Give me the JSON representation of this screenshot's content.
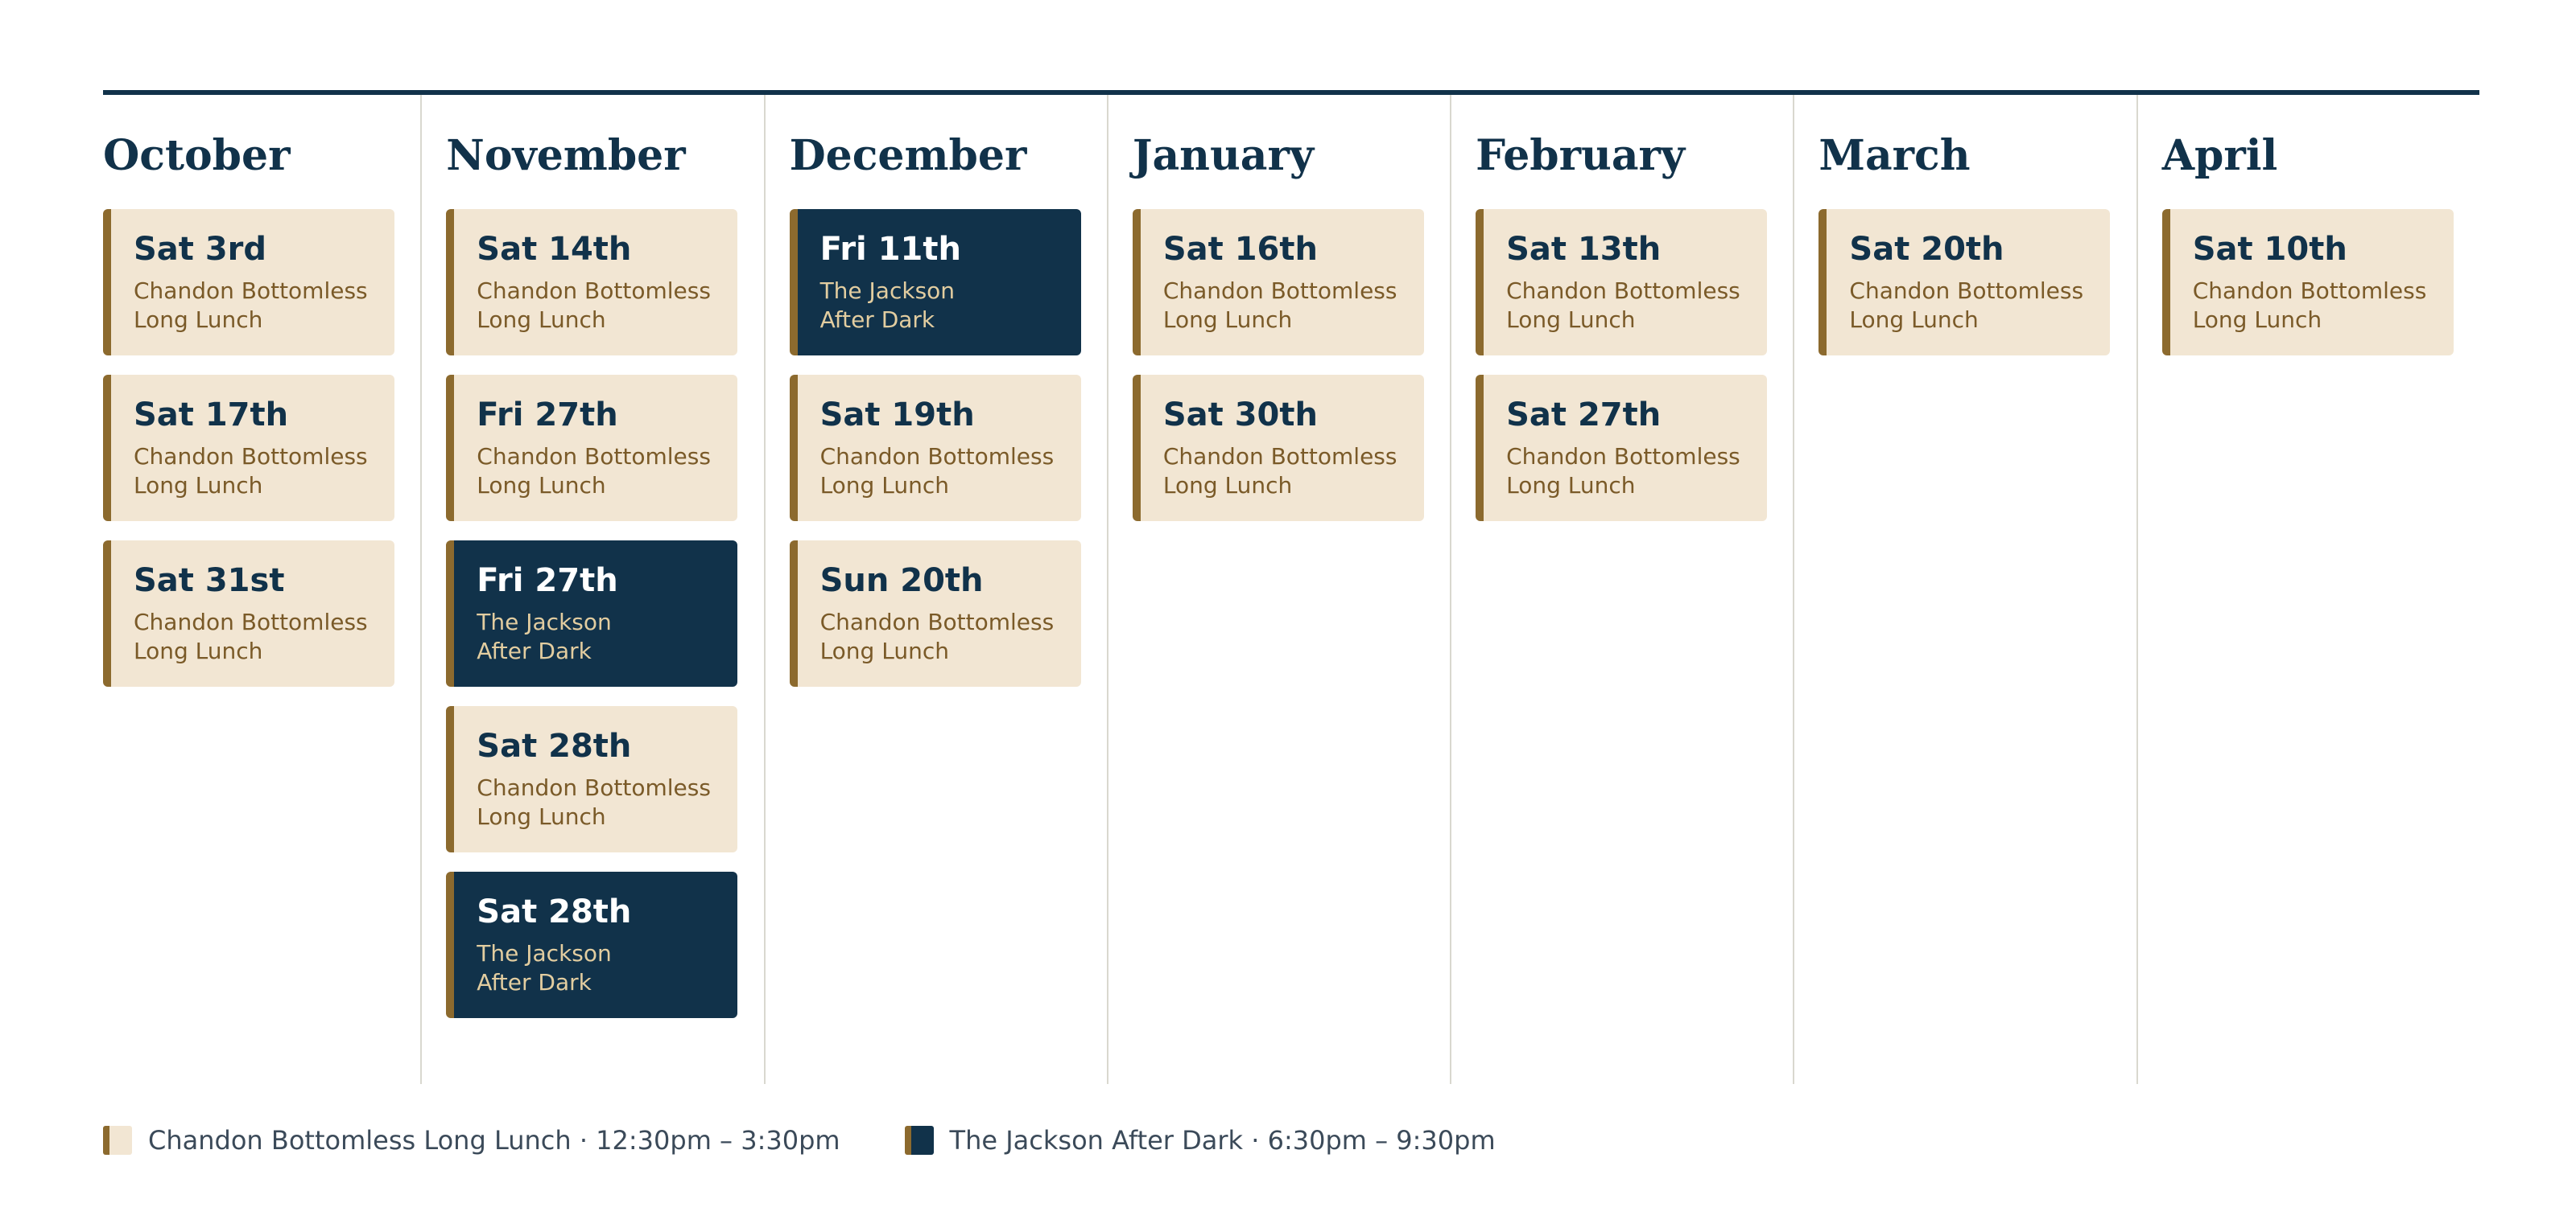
{
  "months": [
    {
      "name": "October",
      "events": [
        {
          "date": "Sat 3rd",
          "name": "Chandon Bottomless\nLong Lunch",
          "type": "lunch"
        },
        {
          "date": "Sat 17th",
          "name": "Chandon Bottomless\nLong Lunch",
          "type": "lunch"
        },
        {
          "date": "Sat 31st",
          "name": "Chandon Bottomless\nLong Lunch",
          "type": "lunch"
        }
      ]
    },
    {
      "name": "November",
      "events": [
        {
          "date": "Sat 14th",
          "name": "Chandon Bottomless\nLong Lunch",
          "type": "lunch"
        },
        {
          "date": "Fri 27th",
          "name": "Chandon Bottomless\nLong Lunch",
          "type": "lunch"
        },
        {
          "date": "Fri 27th",
          "name": "The Jackson\nAfter Dark",
          "type": "after-dark"
        },
        {
          "date": "Sat 28th",
          "name": "Chandon Bottomless\nLong Lunch",
          "type": "lunch"
        },
        {
          "date": "Sat 28th",
          "name": "The Jackson\nAfter Dark",
          "type": "after-dark"
        }
      ]
    },
    {
      "name": "December",
      "events": [
        {
          "date": "Fri 11th",
          "name": "The Jackson\nAfter Dark",
          "type": "after-dark"
        },
        {
          "date": "Sat 19th",
          "name": "Chandon Bottomless\nLong Lunch",
          "type": "lunch"
        },
        {
          "date": "Sun 20th",
          "name": "Chandon Bottomless\nLong Lunch",
          "type": "lunch"
        }
      ]
    },
    {
      "name": "January",
      "events": [
        {
          "date": "Sat 16th",
          "name": "Chandon Bottomless\nLong Lunch",
          "type": "lunch"
        },
        {
          "date": "Sat 30th",
          "name": "Chandon Bottomless\nLong Lunch",
          "type": "lunch"
        }
      ]
    },
    {
      "name": "February",
      "events": [
        {
          "date": "Sat 13th",
          "name": "Chandon Bottomless\nLong Lunch",
          "type": "lunch"
        },
        {
          "date": "Sat 27th",
          "name": "Chandon Bottomless\nLong Lunch",
          "type": "lunch"
        }
      ]
    },
    {
      "name": "March",
      "events": [
        {
          "date": "Sat 20th",
          "name": "Chandon Bottomless\nLong Lunch",
          "type": "lunch"
        }
      ]
    },
    {
      "name": "April",
      "events": [
        {
          "date": "Sat 10th",
          "name": "Chandon Bottomless\nLong Lunch",
          "type": "lunch"
        }
      ]
    }
  ],
  "legend": [
    {
      "type": "lunch",
      "label": "Chandon Bottomless Long Lunch · 12:30pm – 3:30pm"
    },
    {
      "type": "after-dark",
      "label": "The Jackson After Dark · 6:30pm – 9:30pm"
    }
  ],
  "colors": {
    "navy": "#11324a",
    "cream": "#f2e6d3",
    "gold_accent": "#8c6a2e",
    "lunch_subtitle": "#7a5a28",
    "after_dark_subtitle": "#e2cda0",
    "divider": "#d9d8cf"
  }
}
